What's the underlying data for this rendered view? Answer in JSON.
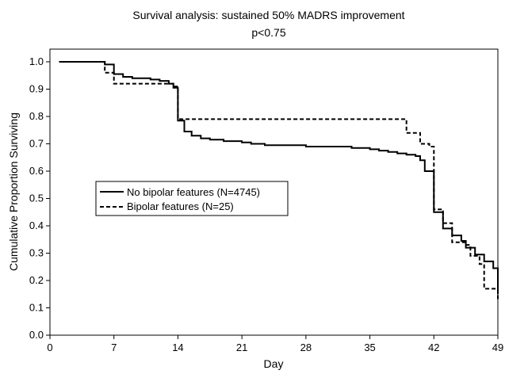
{
  "chart_data": {
    "type": "line",
    "title": "Survival analysis: sustained 50% MADRS improvement",
    "subtitle": "p<0.75",
    "xlabel": "Day",
    "ylabel": "Cumulative Proportion Surviving",
    "xlim": [
      0,
      49
    ],
    "ylim": [
      0.0,
      1.05
    ],
    "x_ticks": [
      0,
      7,
      14,
      21,
      28,
      35,
      42,
      49
    ],
    "y_ticks": [
      "0.0",
      "0.1",
      "0.2",
      "0.3",
      "0.4",
      "0.5",
      "0.6",
      "0.7",
      "0.8",
      "0.9",
      "1.0"
    ],
    "grid": false,
    "legend_position": "middle-left",
    "series": [
      {
        "name": "No bipolar features (N=4745)",
        "style": "solid",
        "color": "#000000",
        "steps": [
          [
            1,
            1.0
          ],
          [
            6,
            0.99
          ],
          [
            7,
            0.955
          ],
          [
            8,
            0.945
          ],
          [
            9,
            0.94
          ],
          [
            11,
            0.935
          ],
          [
            12,
            0.93
          ],
          [
            13,
            0.92
          ],
          [
            13.5,
            0.905
          ],
          [
            14,
            0.785
          ],
          [
            14.7,
            0.745
          ],
          [
            15.5,
            0.73
          ],
          [
            16.5,
            0.72
          ],
          [
            17.5,
            0.715
          ],
          [
            19,
            0.71
          ],
          [
            21,
            0.705
          ],
          [
            22,
            0.7
          ],
          [
            23.5,
            0.695
          ],
          [
            28,
            0.69
          ],
          [
            33,
            0.685
          ],
          [
            35,
            0.68
          ],
          [
            36,
            0.675
          ],
          [
            37,
            0.67
          ],
          [
            38,
            0.665
          ],
          [
            39,
            0.66
          ],
          [
            40,
            0.655
          ],
          [
            40.5,
            0.64
          ],
          [
            41,
            0.6
          ],
          [
            42,
            0.45
          ],
          [
            43,
            0.39
          ],
          [
            44,
            0.365
          ],
          [
            45,
            0.345
          ],
          [
            45.5,
            0.32
          ],
          [
            46.5,
            0.295
          ],
          [
            47.5,
            0.27
          ],
          [
            48.5,
            0.245
          ],
          [
            49,
            0.15
          ]
        ]
      },
      {
        "name": "Bipolar features (N=25)",
        "style": "dashed",
        "color": "#000000",
        "steps": [
          [
            1,
            1.0
          ],
          [
            6,
            0.96
          ],
          [
            7,
            0.92
          ],
          [
            13,
            0.92
          ],
          [
            13.5,
            0.91
          ],
          [
            14,
            0.79
          ],
          [
            39,
            0.74
          ],
          [
            40.5,
            0.7
          ],
          [
            41.5,
            0.69
          ],
          [
            42,
            0.46
          ],
          [
            43,
            0.41
          ],
          [
            44,
            0.34
          ],
          [
            45,
            0.34
          ],
          [
            45.5,
            0.33
          ],
          [
            46,
            0.29
          ],
          [
            47,
            0.26
          ],
          [
            47.5,
            0.17
          ],
          [
            49,
            0.13
          ]
        ]
      }
    ]
  }
}
